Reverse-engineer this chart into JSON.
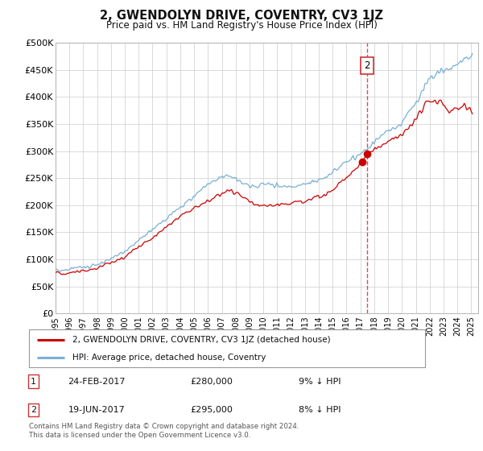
{
  "title": "2, GWENDOLYN DRIVE, COVENTRY, CV3 1JZ",
  "subtitle": "Price paid vs. HM Land Registry's House Price Index (HPI)",
  "ylim": [
    0,
    500000
  ],
  "yticks": [
    0,
    50000,
    100000,
    150000,
    200000,
    250000,
    300000,
    350000,
    400000,
    450000,
    500000
  ],
  "ytick_labels": [
    "£0",
    "£50K",
    "£100K",
    "£150K",
    "£200K",
    "£250K",
    "£300K",
    "£350K",
    "£400K",
    "£450K",
    "£500K"
  ],
  "xlim_start": 1995.0,
  "xlim_end": 2025.5,
  "sale1_date": "24-FEB-2017",
  "sale1_price": 280000,
  "sale1_hpi": "9% ↓ HPI",
  "sale1_x": 2017.13,
  "sale2_date": "19-JUN-2017",
  "sale2_price": 295000,
  "sale2_hpi": "8% ↓ HPI",
  "sale2_x": 2017.47,
  "legend_line1": "2, GWENDOLYN DRIVE, COVENTRY, CV3 1JZ (detached house)",
  "legend_line2": "HPI: Average price, detached house, Coventry",
  "footnote": "Contains HM Land Registry data © Crown copyright and database right 2024.\nThis data is licensed under the Open Government Licence v3.0.",
  "red_color": "#cc0000",
  "blue_color": "#7ab0d4",
  "background_color": "#ffffff",
  "grid_color": "#cccccc"
}
